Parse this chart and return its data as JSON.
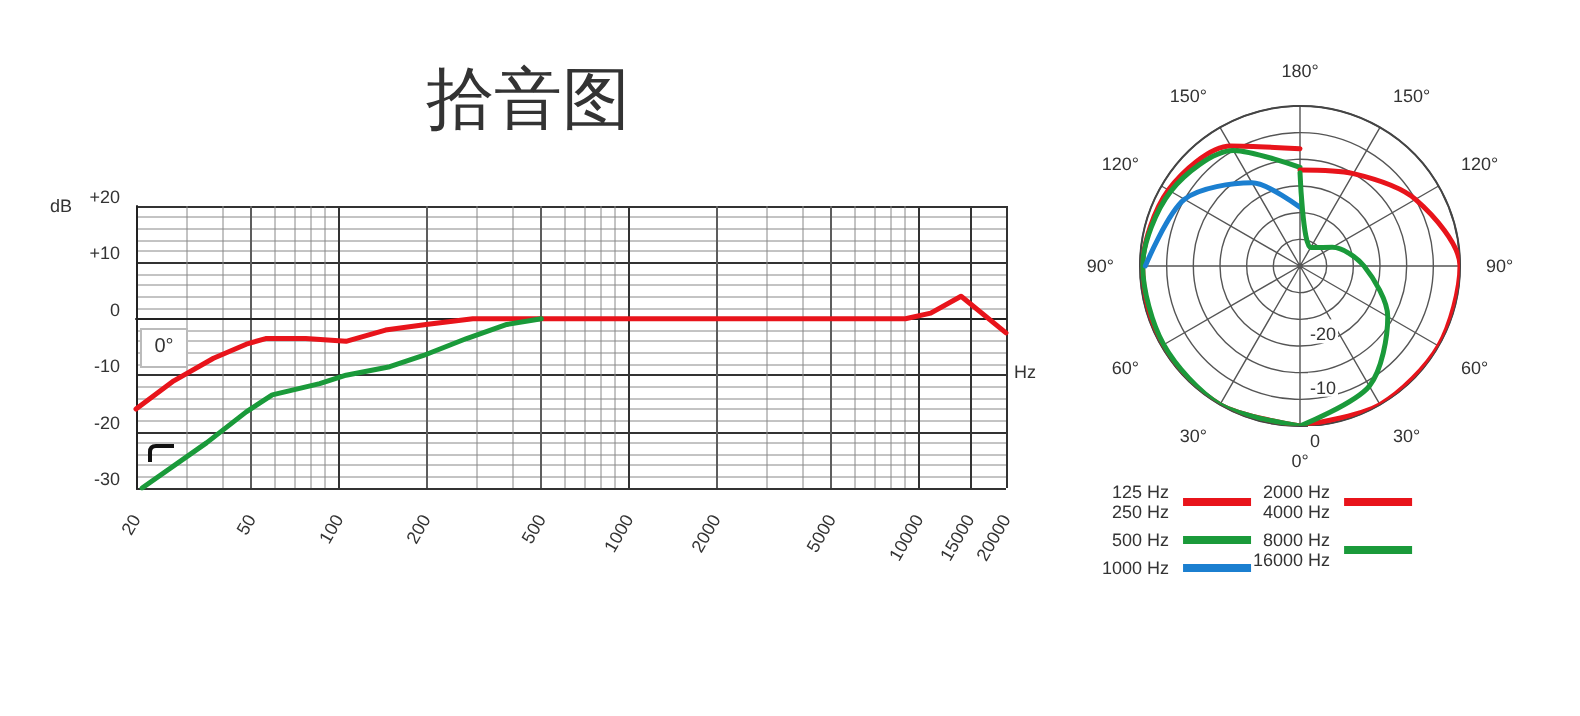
{
  "chart_data": [
    {
      "type": "line",
      "title": "拾音图",
      "xlabel": "Hz",
      "ylabel": "dB",
      "log": "x",
      "xlim": [
        20,
        20000
      ],
      "xticks": [
        20,
        50,
        100,
        200,
        500,
        1000,
        2000,
        5000,
        10000,
        15000,
        20000
      ],
      "ylim": [
        -30,
        20
      ],
      "yticks": [
        {
          "value": 20,
          "label": "+20"
        },
        {
          "value": 10,
          "label": "+10"
        },
        0,
        -10,
        -20,
        -30
      ],
      "grid": true,
      "marker": "none",
      "annotations": [
        "0°"
      ],
      "series": [
        {
          "color": "#e8141b",
          "x": [
            20,
            27,
            37,
            48,
            56,
            77,
            106,
            145,
            200,
            290,
            1000,
            5000,
            9000,
            11000,
            14000,
            20000
          ],
          "values": [
            -16,
            -11,
            -7,
            -4.5,
            -3.5,
            -3.5,
            -4,
            -2,
            -1,
            0,
            0,
            0,
            0,
            1,
            4,
            -2.5
          ]
        },
        {
          "color": "#1a9a3a",
          "x": [
            21,
            35,
            48,
            59,
            86,
            106,
            150,
            196,
            276,
            380,
            500
          ],
          "values": [
            -30,
            -22,
            -16.5,
            -13.5,
            -11.5,
            -10,
            -8.5,
            -6.5,
            -3.5,
            -1,
            0
          ]
        }
      ]
    },
    {
      "type": "radar",
      "categories": [
        "180°",
        "150°",
        "120°",
        "90°",
        "60°",
        "30°",
        "0°",
        "30°",
        "60°",
        "90°",
        "120°",
        "150°"
      ],
      "ylim": [
        -30,
        0
      ],
      "yticks": [
        0,
        -10,
        -20
      ],
      "grid": true,
      "marker": "none",
      "legend": "bottom",
      "series": [
        {
          "name": "125 Hz\n250 Hz",
          "color": "#e8141b",
          "values": [
            -8,
            null,
            null,
            null,
            null,
            null,
            0,
            0,
            0,
            -0.5,
            -1.5,
            -4
          ]
        },
        {
          "name": "500 Hz",
          "color": "#1a9a3a",
          "values": [
            -11.5,
            null,
            null,
            null,
            null,
            null,
            0,
            0,
            -0.5,
            -0.5,
            -2,
            -5
          ]
        },
        {
          "name": "1000 Hz",
          "color": "#1b7fd0",
          "values": [
            -19,
            null,
            null,
            null,
            null,
            null,
            null,
            null,
            null,
            -1,
            -5,
            -12
          ]
        },
        {
          "name": "2000 Hz\n4000 Hz",
          "color": "#e8141b",
          "values": [
            -12,
            -10,
            -5,
            0,
            0,
            0,
            0,
            null,
            null,
            null,
            null,
            null
          ]
        },
        {
          "name": "8000 Hz\n16000 Hz",
          "color": "#1a9a3a",
          "values": [
            -12.5,
            -26,
            -23,
            -18,
            -11,
            -4,
            0,
            null,
            null,
            null,
            null,
            null
          ]
        }
      ]
    }
  ]
}
